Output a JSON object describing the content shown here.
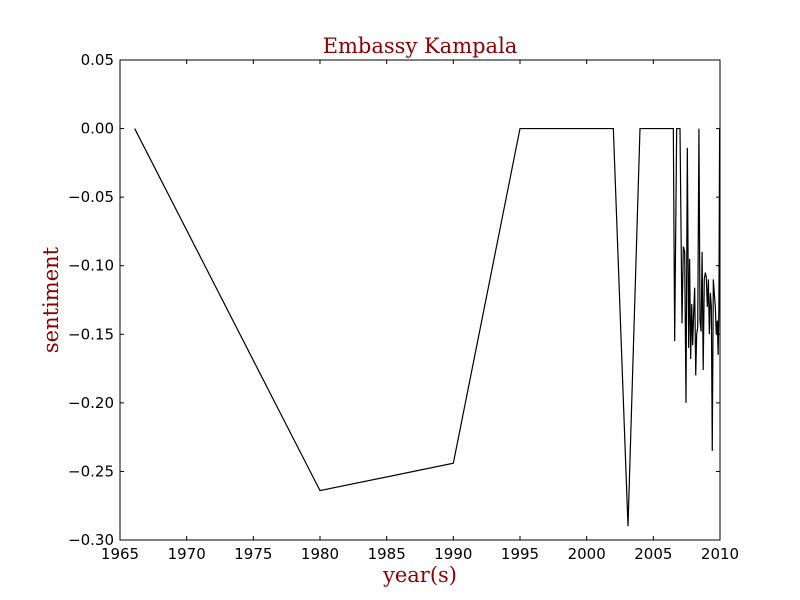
{
  "chart_data": {
    "type": "line",
    "title": "Embassy Kampala",
    "xlabel": "year(s)",
    "ylabel": "sentiment",
    "xlim": [
      1965,
      2010
    ],
    "ylim": [
      -0.3,
      0.05
    ],
    "x_ticks": [
      1965,
      1970,
      1975,
      1980,
      1985,
      1990,
      1995,
      2000,
      2005,
      2010
    ],
    "y_ticks": [
      0.05,
      0.0,
      -0.05,
      -0.1,
      -0.15,
      -0.2,
      -0.25,
      -0.3
    ],
    "x_tick_labels": [
      "1965",
      "1970",
      "1975",
      "1980",
      "1985",
      "1990",
      "1995",
      "2000",
      "2005",
      "2010"
    ],
    "y_tick_labels": [
      "0.05",
      "0.00",
      "−0.05",
      "−0.10",
      "−0.15",
      "−0.20",
      "−0.25",
      "−0.30"
    ],
    "grid": false,
    "series": [
      {
        "line_color": "#000000",
        "x": [
          1966.1,
          1980.0,
          1990.0,
          1995.0,
          2002.0,
          2003.1,
          2004.0,
          2006.5,
          2006.6,
          2006.75,
          2007.0,
          2007.15,
          2007.25,
          2007.35,
          2007.45,
          2007.55,
          2007.65,
          2007.72,
          2007.8,
          2007.88,
          2007.95,
          2008.02,
          2008.1,
          2008.18,
          2008.25,
          2008.33,
          2008.42,
          2008.5,
          2008.58,
          2008.66,
          2008.74,
          2008.82,
          2008.9,
          2008.97,
          2009.05,
          2009.13,
          2009.2,
          2009.28,
          2009.35,
          2009.42,
          2009.5,
          2009.57,
          2009.65,
          2009.72,
          2009.8,
          2009.86,
          2009.92,
          2009.97
        ],
        "y": [
          0.0,
          -0.264,
          -0.244,
          0.0,
          0.0,
          -0.29,
          0.0,
          0.0,
          -0.155,
          0.0,
          0.0,
          -0.142,
          -0.086,
          -0.09,
          -0.2,
          -0.014,
          -0.16,
          -0.095,
          -0.168,
          -0.128,
          -0.158,
          -0.135,
          -0.116,
          -0.18,
          -0.15,
          -0.145,
          0.0,
          -0.14,
          -0.148,
          -0.09,
          -0.176,
          -0.11,
          -0.105,
          -0.108,
          -0.13,
          -0.11,
          -0.15,
          -0.12,
          -0.13,
          -0.235,
          -0.11,
          -0.12,
          -0.13,
          -0.15,
          -0.14,
          -0.165,
          -0.13,
          0.0
        ]
      }
    ],
    "colors": {
      "title": "#8b0000",
      "axis_label": "#8b0000",
      "axes": "#000000",
      "background": "#ffffff"
    }
  }
}
